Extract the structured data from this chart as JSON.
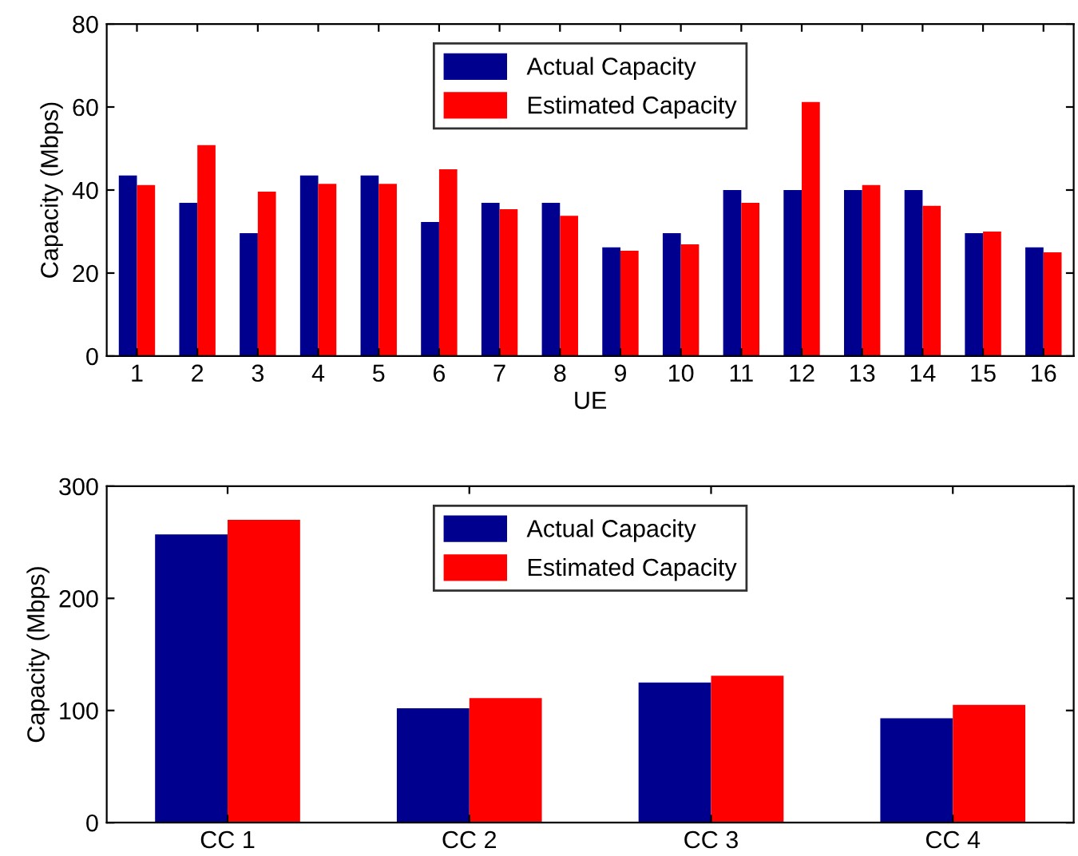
{
  "chart_data": [
    {
      "type": "bar",
      "xlabel": "UE",
      "ylabel": "Capacity (Mbps)",
      "categories": [
        "1",
        "2",
        "3",
        "4",
        "5",
        "6",
        "7",
        "8",
        "9",
        "10",
        "11",
        "12",
        "13",
        "14",
        "15",
        "16"
      ],
      "series": [
        {
          "name": "Actual Capacity",
          "color": "#00008f",
          "values": [
            43.5,
            36.9,
            29.6,
            43.5,
            43.5,
            32.3,
            36.9,
            36.9,
            26.2,
            29.6,
            40,
            40,
            40,
            40,
            29.6,
            26.2
          ]
        },
        {
          "name": "Estimated Capacity",
          "color": "#ff0000",
          "values": [
            41.2,
            50.8,
            39.6,
            41.5,
            41.5,
            45,
            35.4,
            33.8,
            25.4,
            26.9,
            36.9,
            61.2,
            41.2,
            36.2,
            30,
            25
          ]
        }
      ],
      "ylim": [
        0,
        80
      ],
      "yticks": [
        0,
        20,
        40,
        60,
        80
      ],
      "grid": false,
      "legend": "top"
    },
    {
      "type": "bar",
      "ylabel": "Capacity (Mbps)",
      "categories": [
        "CC 1",
        "CC 2",
        "CC 3",
        "CC 4"
      ],
      "series": [
        {
          "name": "Actual Capacity",
          "color": "#00008f",
          "values": [
            257,
            102,
            125,
            93
          ]
        },
        {
          "name": "Estimated Capacity",
          "color": "#ff0000",
          "values": [
            270,
            111,
            131,
            105
          ]
        }
      ],
      "ylim": [
        0,
        300
      ],
      "yticks": [
        0,
        100,
        200,
        300
      ],
      "grid": false,
      "legend": "top"
    }
  ]
}
